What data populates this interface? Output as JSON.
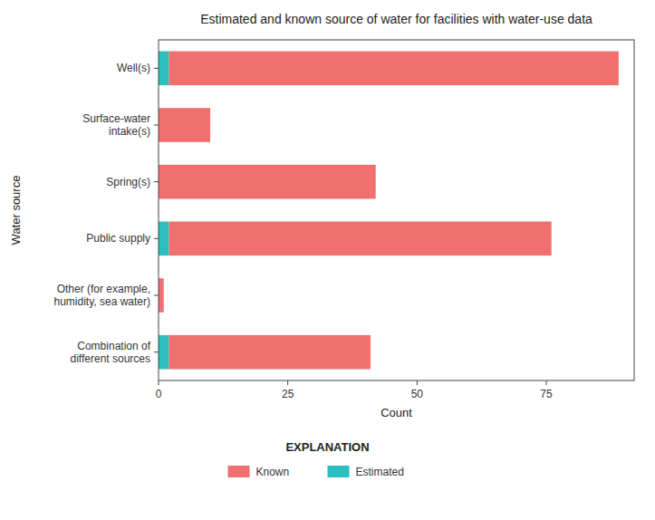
{
  "chart_data": {
    "type": "bar",
    "orientation": "horizontal",
    "stacked": true,
    "title": "Estimated and known source of water for facilities with water-use data",
    "categories": [
      "Well(s)",
      "Surface-water\nintake(s)",
      "Spring(s)",
      "Public supply",
      "Other (for example,\nhumidity, sea water)",
      "Combination of\ndifferent sources"
    ],
    "series": [
      {
        "name": "Estimated",
        "color": "#2BBFBF",
        "values": [
          2,
          0,
          0,
          2,
          0,
          2
        ]
      },
      {
        "name": "Known",
        "color": "#F07070",
        "values": [
          87,
          10,
          42,
          74,
          1,
          39
        ]
      }
    ],
    "x_label": "Count",
    "y_label": "Water source",
    "xlim": [
      0,
      92
    ],
    "xticks": [
      0,
      25,
      50,
      75
    ],
    "legend_title": "EXPLANATION",
    "legend": "bottom",
    "grid": false
  }
}
